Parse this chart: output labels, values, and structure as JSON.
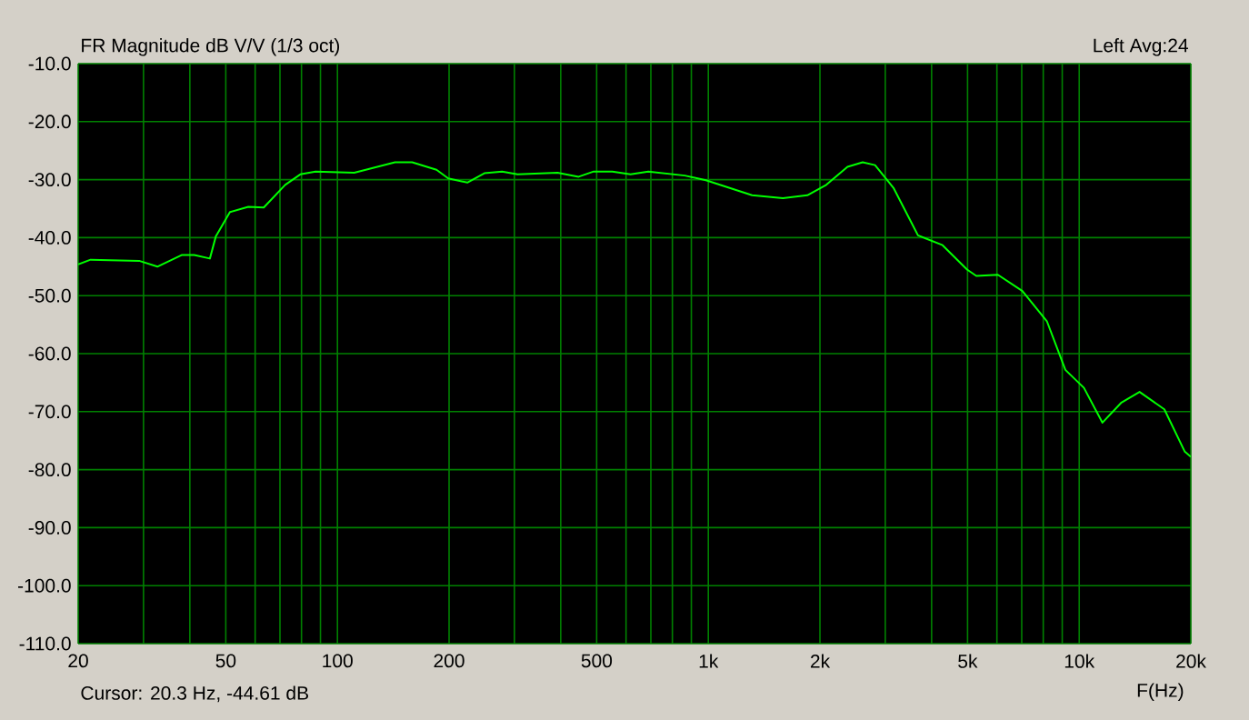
{
  "chart_data": {
    "type": "line",
    "title": "FR Magnitude dB V/V (1/3 oct)",
    "xlabel": "F(Hz)",
    "annotations": [
      "Left Avg:24",
      "Cursor:  20.3 Hz, -44.61 dB"
    ],
    "log": "x",
    "grid": true,
    "marker": "none",
    "line_style": "solid",
    "xlim": [
      20,
      20000
    ],
    "ylim": [
      -110,
      -10
    ],
    "xticks": [
      20,
      {
        "value": 30,
        "label": null
      },
      {
        "value": 40,
        "label": null
      },
      50,
      {
        "value": 60,
        "label": null
      },
      {
        "value": 70,
        "label": null
      },
      {
        "value": 80,
        "label": null
      },
      {
        "value": 90,
        "label": null
      },
      100,
      200,
      {
        "value": 300,
        "label": null
      },
      {
        "value": 400,
        "label": null
      },
      500,
      {
        "value": 600,
        "label": null
      },
      {
        "value": 700,
        "label": null
      },
      {
        "value": 800,
        "label": null
      },
      {
        "value": 900,
        "label": null
      },
      {
        "value": 1000,
        "label": "1k"
      },
      {
        "value": 2000,
        "label": "2k"
      },
      {
        "value": 3000,
        "label": null
      },
      {
        "value": 4000,
        "label": null
      },
      {
        "value": 5000,
        "label": "5k"
      },
      {
        "value": 6000,
        "label": null
      },
      {
        "value": 7000,
        "label": null
      },
      {
        "value": 8000,
        "label": null
      },
      {
        "value": 9000,
        "label": null
      },
      {
        "value": 10000,
        "label": "10k"
      },
      {
        "value": 20000,
        "label": "20k"
      }
    ],
    "yticks": [
      {
        "value": -10,
        "label": "-10.0"
      },
      {
        "value": -20,
        "label": "-20.0"
      },
      {
        "value": -30,
        "label": "-30.0"
      },
      {
        "value": -40,
        "label": "-40.0"
      },
      {
        "value": -50,
        "label": "-50.0"
      },
      {
        "value": -60,
        "label": "-60.0"
      },
      {
        "value": -70,
        "label": "-70.0"
      },
      {
        "value": -80,
        "label": "-80.0"
      },
      {
        "value": -90,
        "label": "-90.0"
      },
      {
        "value": -100,
        "label": "-100.0"
      },
      {
        "value": -110,
        "label": "-110.0"
      }
    ],
    "series": [
      {
        "color": "#00ff00",
        "x": [
          20,
          21.6,
          29.2,
          32.7,
          38,
          41.1,
          45.3,
          47,
          51.3,
          57.5,
          63.3,
          72.3,
          79.4,
          87.3,
          111,
          143,
          159,
          185,
          199,
          224,
          249,
          278,
          306,
          392,
          447,
          491,
          551,
          617,
          689,
          864,
          985,
          1312,
          1589,
          1849,
          2080,
          2373,
          2607,
          2815,
          3156,
          3675,
          4281,
          4985,
          5279,
          6036,
          7028,
          8181,
          9178,
          10298,
          11554,
          12964,
          14546,
          16967,
          19262,
          20000
        ],
        "values": [
          -44.6,
          -43.8,
          -44.0,
          -45.0,
          -43.0,
          -43.0,
          -43.6,
          -39.8,
          -35.6,
          -34.7,
          -34.8,
          -30.9,
          -29.1,
          -28.6,
          -28.8,
          -27.0,
          -27.0,
          -28.3,
          -29.8,
          -30.5,
          -28.9,
          -28.6,
          -29.1,
          -28.8,
          -29.5,
          -28.6,
          -28.6,
          -29.1,
          -28.6,
          -29.3,
          -30.1,
          -32.7,
          -33.2,
          -32.7,
          -30.9,
          -27.8,
          -27.0,
          -27.5,
          -31.4,
          -39.6,
          -41.3,
          -45.5,
          -46.6,
          -46.4,
          -49.2,
          -54.4,
          -62.8,
          -65.9,
          -71.9,
          -68.5,
          -66.6,
          -69.6,
          -76.9,
          -77.8
        ]
      }
    ]
  }
}
